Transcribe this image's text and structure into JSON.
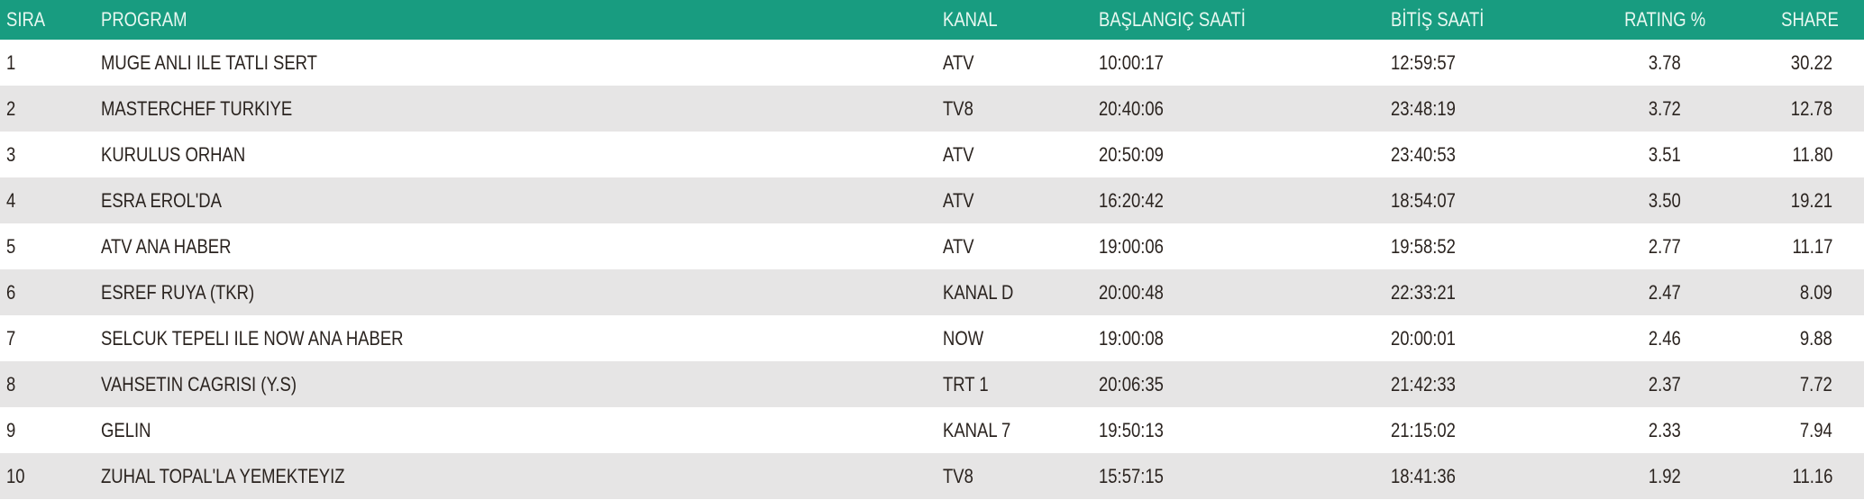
{
  "header": {
    "sira": "SIRA",
    "program": "PROGRAM",
    "kanal": "KANAL",
    "start": "BAŞLANGIÇ SAATİ",
    "end": "BİTİŞ SAATİ",
    "rating": "RATING %",
    "share": "SHARE"
  },
  "colors": {
    "header_bg": "#189c80",
    "header_text": "#e9f8f1",
    "alt_row": "#e6e5e5",
    "text": "#2a231f"
  },
  "rows": [
    {
      "sira": "1",
      "program": "MUGE ANLI ILE TATLI SERT",
      "kanal": "ATV",
      "start": "10:00:17",
      "end": "12:59:57",
      "rating": "3.78",
      "share": "30.22"
    },
    {
      "sira": "2",
      "program": "MASTERCHEF TURKIYE",
      "kanal": "TV8",
      "start": "20:40:06",
      "end": "23:48:19",
      "rating": "3.72",
      "share": "12.78"
    },
    {
      "sira": "3",
      "program": "KURULUS ORHAN",
      "kanal": "ATV",
      "start": "20:50:09",
      "end": "23:40:53",
      "rating": "3.51",
      "share": "11.80"
    },
    {
      "sira": "4",
      "program": "ESRA EROL'DA",
      "kanal": "ATV",
      "start": "16:20:42",
      "end": "18:54:07",
      "rating": "3.50",
      "share": "19.21"
    },
    {
      "sira": "5",
      "program": "ATV ANA HABER",
      "kanal": "ATV",
      "start": "19:00:06",
      "end": "19:58:52",
      "rating": "2.77",
      "share": "11.17"
    },
    {
      "sira": "6",
      "program": "ESREF RUYA (TKR)",
      "kanal": "KANAL D",
      "start": "20:00:48",
      "end": "22:33:21",
      "rating": "2.47",
      "share": "8.09"
    },
    {
      "sira": "7",
      "program": "SELCUK TEPELI ILE NOW ANA HABER",
      "kanal": "NOW",
      "start": "19:00:08",
      "end": "20:00:01",
      "rating": "2.46",
      "share": "9.88"
    },
    {
      "sira": "8",
      "program": "VAHSETIN CAGRISI (Y.S)",
      "kanal": "TRT 1",
      "start": "20:06:35",
      "end": "21:42:33",
      "rating": "2.37",
      "share": "7.72"
    },
    {
      "sira": "9",
      "program": "GELIN",
      "kanal": "KANAL 7",
      "start": "19:50:13",
      "end": "21:15:02",
      "rating": "2.33",
      "share": "7.94"
    },
    {
      "sira": "10",
      "program": "ZUHAL TOPAL'LA YEMEKTEYIZ",
      "kanal": "TV8",
      "start": "15:57:15",
      "end": "18:41:36",
      "rating": "1.92",
      "share": "11.16"
    }
  ]
}
